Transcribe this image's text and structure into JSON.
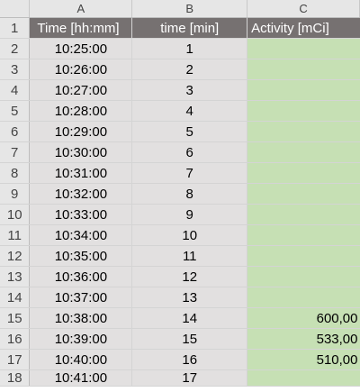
{
  "columns": [
    "A",
    "B",
    "C"
  ],
  "header_row": {
    "row_number": "1",
    "time": "Time [hh:mm]",
    "minutes": "time [min]",
    "activity": "Activity [mCi]"
  },
  "rows": [
    {
      "row_number": "2",
      "time": "10:25:00",
      "minutes": "1",
      "activity": ""
    },
    {
      "row_number": "3",
      "time": "10:26:00",
      "minutes": "2",
      "activity": ""
    },
    {
      "row_number": "4",
      "time": "10:27:00",
      "minutes": "3",
      "activity": ""
    },
    {
      "row_number": "5",
      "time": "10:28:00",
      "minutes": "4",
      "activity": ""
    },
    {
      "row_number": "6",
      "time": "10:29:00",
      "minutes": "5",
      "activity": ""
    },
    {
      "row_number": "7",
      "time": "10:30:00",
      "minutes": "6",
      "activity": ""
    },
    {
      "row_number": "8",
      "time": "10:31:00",
      "minutes": "7",
      "activity": ""
    },
    {
      "row_number": "9",
      "time": "10:32:00",
      "minutes": "8",
      "activity": ""
    },
    {
      "row_number": "10",
      "time": "10:33:00",
      "minutes": "9",
      "activity": ""
    },
    {
      "row_number": "11",
      "time": "10:34:00",
      "minutes": "10",
      "activity": ""
    },
    {
      "row_number": "12",
      "time": "10:35:00",
      "minutes": "11",
      "activity": ""
    },
    {
      "row_number": "13",
      "time": "10:36:00",
      "minutes": "12",
      "activity": ""
    },
    {
      "row_number": "14",
      "time": "10:37:00",
      "minutes": "13",
      "activity": ""
    },
    {
      "row_number": "15",
      "time": "10:38:00",
      "minutes": "14",
      "activity": "600,00"
    },
    {
      "row_number": "16",
      "time": "10:39:00",
      "minutes": "15",
      "activity": "533,00"
    },
    {
      "row_number": "17",
      "time": "10:40:00",
      "minutes": "16",
      "activity": "510,00"
    },
    {
      "row_number": "18",
      "time": "10:41:00",
      "minutes": "17",
      "activity": ""
    }
  ],
  "colors": {
    "header_fill": "#767171",
    "gray_fill": "#e2e0e0",
    "green_fill": "#c6e0b4",
    "chrome": "#e6e6e6"
  }
}
